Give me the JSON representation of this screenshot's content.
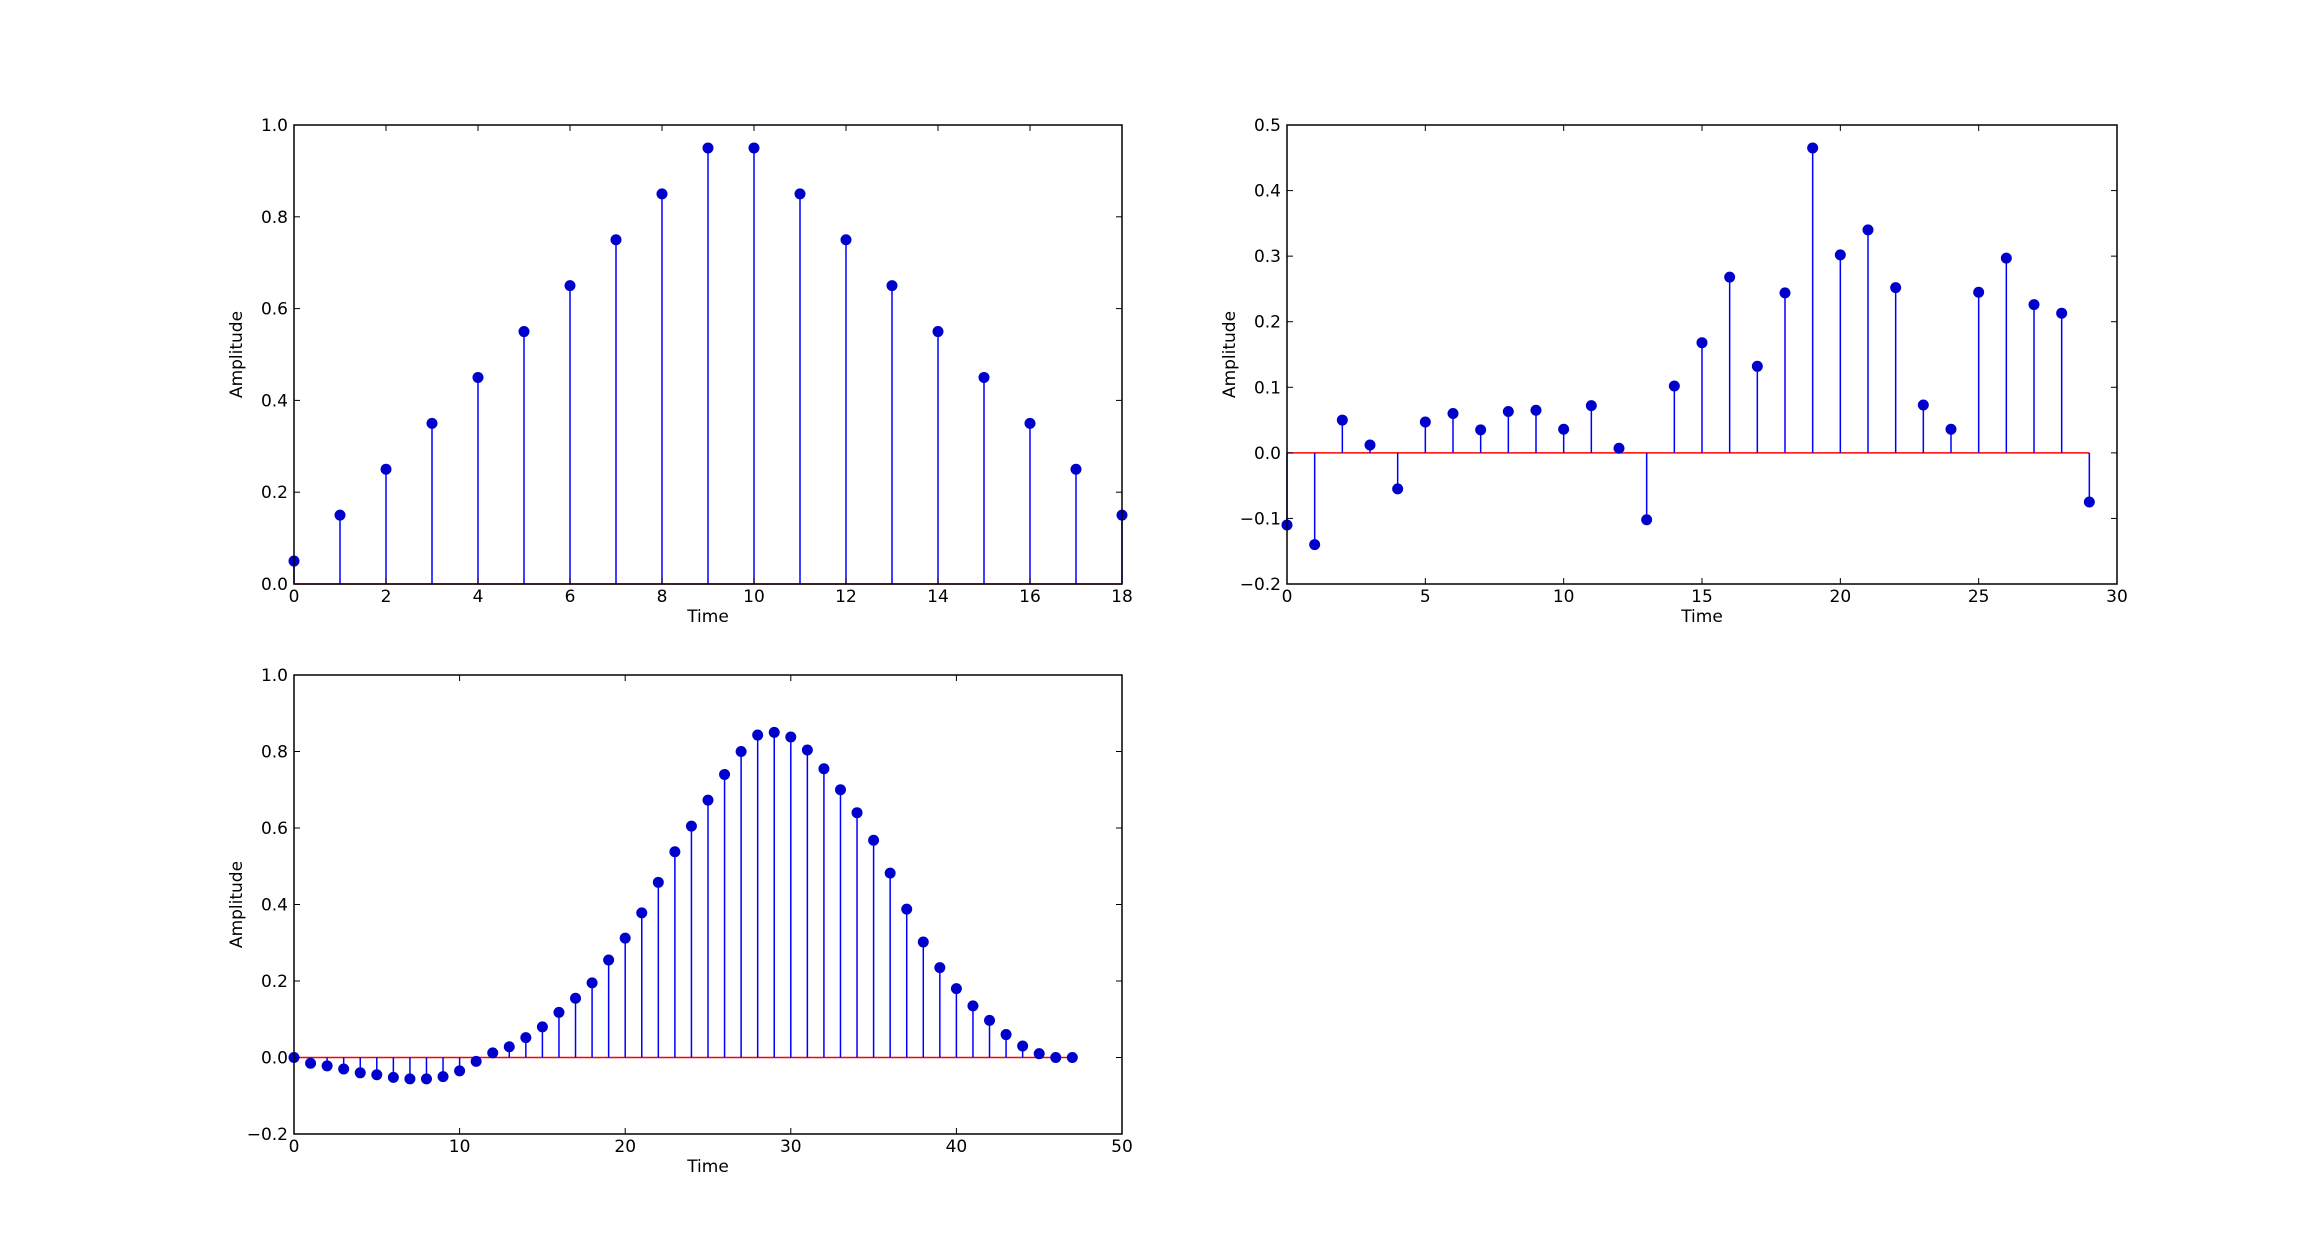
{
  "chart_data": [
    {
      "type": "stem",
      "xlabel": "Time",
      "ylabel": "Amplitude",
      "color": "#0000ff",
      "marker_color": "#0000cc",
      "baseline_color": "#ff0000",
      "x": [
        0,
        1,
        2,
        3,
        4,
        5,
        6,
        7,
        8,
        9,
        10,
        11,
        12,
        13,
        14,
        15,
        16,
        17,
        18
      ],
      "values": [
        0.05,
        0.15,
        0.25,
        0.35,
        0.45,
        0.55,
        0.65,
        0.75,
        0.85,
        0.95,
        0.95,
        0.85,
        0.75,
        0.65,
        0.55,
        0.45,
        0.35,
        0.25,
        0.15
      ],
      "xlim": [
        0,
        18
      ],
      "xticks": [
        0,
        2,
        4,
        6,
        8,
        10,
        12,
        14,
        16,
        18
      ],
      "ylim": [
        0,
        1
      ],
      "yticks": [
        {
          "value": 0,
          "label": "0.0"
        },
        {
          "value": 0.2,
          "label": "0.2"
        },
        {
          "value": 0.4,
          "label": "0.4"
        },
        {
          "value": 0.6,
          "label": "0.6"
        },
        {
          "value": 0.8,
          "label": "0.8"
        },
        {
          "value": 1,
          "label": "1.0"
        }
      ]
    },
    {
      "type": "stem",
      "xlabel": "Time",
      "ylabel": "Amplitude",
      "color": "#0000ff",
      "marker_color": "#0000cc",
      "baseline_color": "#ff0000",
      "x": [
        0,
        1,
        2,
        3,
        4,
        5,
        6,
        7,
        8,
        9,
        10,
        11,
        12,
        13,
        14,
        15,
        16,
        17,
        18,
        19,
        20,
        21,
        22,
        23,
        24,
        25,
        26,
        27,
        28,
        29
      ],
      "values": [
        -0.11,
        -0.14,
        0.05,
        0.012,
        -0.055,
        0.047,
        0.06,
        0.035,
        0.063,
        0.065,
        0.036,
        0.072,
        0.007,
        -0.102,
        0.102,
        0.168,
        0.268,
        0.132,
        0.244,
        0.465,
        0.302,
        0.34,
        0.252,
        0.073,
        0.036,
        0.245,
        0.297,
        0.226,
        0.213,
        -0.075
      ],
      "xlim": [
        0,
        30
      ],
      "xticks": [
        0,
        5,
        10,
        15,
        20,
        25,
        30
      ],
      "ylim": [
        -0.2,
        0.5
      ],
      "yticks": [
        {
          "value": -0.2,
          "label": "−0.2"
        },
        {
          "value": -0.1,
          "label": "−0.1"
        },
        {
          "value": 0,
          "label": "0.0"
        },
        {
          "value": 0.1,
          "label": "0.1"
        },
        {
          "value": 0.2,
          "label": "0.2"
        },
        {
          "value": 0.3,
          "label": "0.3"
        },
        {
          "value": 0.4,
          "label": "0.4"
        },
        {
          "value": 0.5,
          "label": "0.5"
        }
      ]
    },
    {
      "type": "stem",
      "xlabel": "Time",
      "ylabel": "Amplitude",
      "color": "#0000ff",
      "marker_color": "#0000cc",
      "baseline_color": "#ff0000",
      "x": [
        0,
        1,
        2,
        3,
        4,
        5,
        6,
        7,
        8,
        9,
        10,
        11,
        12,
        13,
        14,
        15,
        16,
        17,
        18,
        19,
        20,
        21,
        22,
        23,
        24,
        25,
        26,
        27,
        28,
        29,
        30,
        31,
        32,
        33,
        34,
        35,
        36,
        37,
        38,
        39,
        40,
        41,
        42,
        43,
        44,
        45,
        46,
        47
      ],
      "values": [
        0,
        -0.015,
        -0.022,
        -0.03,
        -0.04,
        -0.045,
        -0.052,
        -0.056,
        -0.056,
        -0.05,
        -0.035,
        -0.01,
        0.012,
        0.028,
        0.052,
        0.08,
        0.118,
        0.155,
        0.195,
        0.255,
        0.312,
        0.378,
        0.458,
        0.538,
        0.605,
        0.673,
        0.74,
        0.8,
        0.843,
        0.85,
        0.838,
        0.804,
        0.755,
        0.7,
        0.64,
        0.568,
        0.482,
        0.388,
        0.302,
        0.235,
        0.18,
        0.135,
        0.097,
        0.06,
        0.03,
        0.01,
        0,
        0
      ],
      "xlim": [
        0,
        50
      ],
      "xticks": [
        0,
        10,
        20,
        30,
        40,
        50
      ],
      "ylim": [
        -0.2,
        1
      ],
      "yticks": [
        {
          "value": -0.2,
          "label": "−0.2"
        },
        {
          "value": 0,
          "label": "0.0"
        },
        {
          "value": 0.2,
          "label": "0.2"
        },
        {
          "value": 0.4,
          "label": "0.4"
        },
        {
          "value": 0.6,
          "label": "0.6"
        },
        {
          "value": 0.8,
          "label": "0.8"
        },
        {
          "value": 1,
          "label": "1.0"
        }
      ]
    }
  ]
}
